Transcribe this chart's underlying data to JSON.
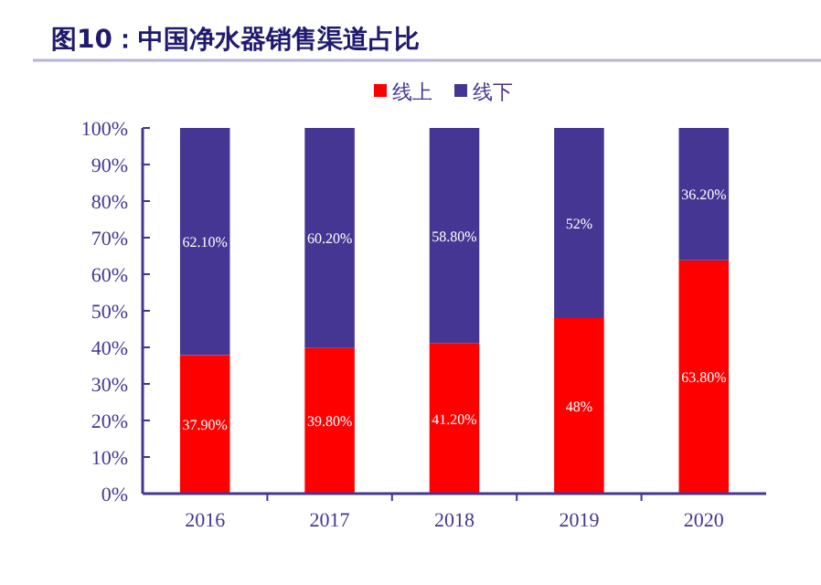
{
  "chart_data": {
    "type": "bar",
    "stacked": true,
    "title": "图10：中国净水器销售渠道占比",
    "categories": [
      "2016",
      "2017",
      "2018",
      "2019",
      "2020"
    ],
    "series": [
      {
        "name": "线上",
        "color": "#ff0000",
        "values": [
          37.9,
          39.8,
          41.2,
          48,
          63.8
        ],
        "value_labels": [
          "37.90%",
          "39.80%",
          "41.20%",
          "48%",
          "63.80%"
        ]
      },
      {
        "name": "线下",
        "color": "#443692",
        "values": [
          62.1,
          60.2,
          58.8,
          52,
          36.2
        ],
        "value_labels": [
          "62.10%",
          "60.20%",
          "58.80%",
          "52%",
          "36.20%"
        ]
      }
    ],
    "ylim": [
      0,
      100
    ],
    "yticks": [
      {
        "value": 0,
        "label": "0%"
      },
      {
        "value": 10,
        "label": "10%"
      },
      {
        "value": 20,
        "label": "20%"
      },
      {
        "value": 30,
        "label": "30%"
      },
      {
        "value": 40,
        "label": "40%"
      },
      {
        "value": 50,
        "label": "50%"
      },
      {
        "value": 60,
        "label": "60%"
      },
      {
        "value": 70,
        "label": "70%"
      },
      {
        "value": 80,
        "label": "80%"
      },
      {
        "value": 90,
        "label": "90%"
      },
      {
        "value": 100,
        "label": "100%"
      }
    ],
    "legend": "top",
    "grid": false
  }
}
